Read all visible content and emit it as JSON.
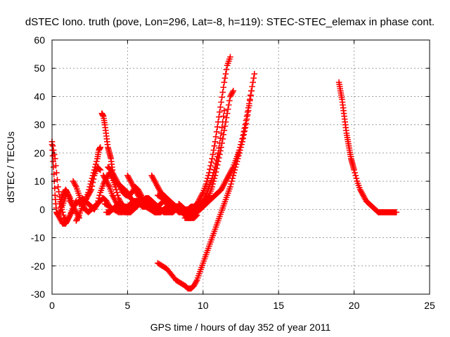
{
  "chart_data": {
    "type": "scatter",
    "title": "dSTEC Iono. truth (pove, Lon=296, Lat=-8, h=119): STEC-STEC_elemax in phase cont.",
    "xlabel": "GPS time / hours of day 352 of year 2011",
    "ylabel": "dSTEC  / TECUs",
    "xlim": [
      0,
      25
    ],
    "ylim": [
      -30,
      60
    ],
    "x_ticks": [
      0,
      5,
      10,
      15,
      20,
      25
    ],
    "y_ticks": [
      -30,
      -20,
      -10,
      0,
      10,
      20,
      30,
      40,
      50,
      60
    ],
    "grid": true,
    "marker": "plus",
    "color": "#ff0000",
    "series": [
      {
        "x": [
          0.0,
          0.2,
          0.4,
          0.6,
          0.8,
          1.0,
          1.2,
          1.4,
          1.6
        ],
        "y": [
          24,
          18,
          8,
          1,
          -3,
          -4,
          -2,
          1,
          3
        ]
      },
      {
        "x": [
          0.0,
          0.1,
          0.2,
          0.3,
          0.4,
          0.6,
          0.8,
          1.0,
          1.2,
          1.4,
          1.6,
          1.8
        ],
        "y": [
          23,
          15,
          5,
          -1,
          -2,
          0,
          3,
          6,
          4,
          1,
          -1,
          -3
        ]
      },
      {
        "x": [
          0.3,
          0.5,
          0.7,
          0.9,
          1.0,
          1.2,
          1.4
        ],
        "y": [
          -1,
          -3,
          -5,
          -5,
          -4,
          -2,
          0
        ]
      },
      {
        "x": [
          0.5,
          0.7,
          0.9,
          1.0,
          1.2,
          1.4,
          1.6,
          1.8,
          2.0,
          2.2,
          2.4,
          2.6,
          2.8,
          3.0,
          3.2
        ],
        "y": [
          2,
          5,
          7,
          6,
          3,
          1,
          2,
          3,
          2,
          3,
          5,
          7,
          12,
          15,
          14
        ]
      },
      {
        "x": [
          1.4,
          1.6,
          1.8,
          2.0,
          2.2,
          2.4,
          2.6,
          2.8,
          3.0,
          3.2,
          3.4,
          3.6,
          3.8,
          4.0
        ],
        "y": [
          10,
          8,
          5,
          2,
          0,
          -1,
          0,
          1,
          2,
          3,
          4,
          3,
          1,
          0
        ]
      },
      {
        "x": [
          1.6,
          1.8,
          2.0,
          2.2,
          2.4,
          2.6,
          2.8,
          3.0,
          3.1,
          3.2
        ],
        "y": [
          -4,
          -2,
          1,
          3,
          6,
          10,
          14,
          18,
          21,
          22
        ]
      },
      {
        "x": [
          1.8,
          2.0,
          2.2,
          2.4,
          2.6,
          2.8,
          3.0,
          3.2,
          3.4,
          3.6,
          3.8,
          4.0,
          4.2
        ],
        "y": [
          2,
          4,
          3,
          2,
          1,
          0,
          2,
          6,
          9,
          11,
          13,
          11,
          8
        ]
      },
      {
        "x": [
          3.3,
          3.4,
          3.5,
          3.6,
          3.7,
          3.8,
          3.9,
          4.0,
          4.2,
          4.4,
          4.6,
          4.8,
          5.0,
          5.2,
          5.4,
          5.6,
          5.8,
          6.0,
          6.2,
          6.4,
          6.6
        ],
        "y": [
          34,
          33,
          30,
          26,
          22,
          20,
          18,
          14,
          8,
          4,
          2,
          1,
          1,
          2,
          3,
          3,
          2,
          1,
          1,
          1,
          1
        ]
      },
      {
        "x": [
          3.4,
          3.6,
          3.8,
          4.0,
          4.2,
          4.4,
          4.6,
          4.8,
          5.0,
          5.2,
          5.4,
          5.6,
          5.8,
          6.0
        ],
        "y": [
          12,
          10,
          8,
          5,
          3,
          1,
          0,
          -1,
          -1,
          0,
          1,
          2,
          2,
          1
        ]
      },
      {
        "x": [
          3.5,
          3.8,
          4.1,
          4.4,
          4.7,
          5.0,
          5.3,
          5.6,
          5.9,
          6.2,
          6.5,
          6.8,
          7.1,
          7.4
        ],
        "y": [
          2,
          1,
          0,
          -1,
          -1,
          0,
          1,
          2,
          2,
          1,
          0,
          -1,
          -1,
          0
        ]
      },
      {
        "x": [
          3.6,
          3.8,
          4.0,
          4.2,
          4.4,
          4.6,
          4.8,
          5.0,
          5.2,
          5.4,
          5.6,
          5.8,
          6.0,
          6.2,
          6.4,
          6.6,
          6.8,
          7.0,
          7.2,
          7.4,
          7.6,
          7.8,
          8.0
        ],
        "y": [
          -1,
          -1,
          0,
          1,
          2,
          1,
          0,
          -1,
          -1,
          0,
          1,
          2,
          3,
          2,
          1,
          0,
          0,
          1,
          2,
          3,
          2,
          1,
          0
        ]
      },
      {
        "x": [
          3.7,
          3.9,
          4.1,
          4.3,
          4.5,
          4.7,
          4.9,
          5.1,
          5.3,
          5.5,
          5.7,
          5.9,
          6.1,
          6.3,
          6.5,
          6.7,
          6.9
        ],
        "y": [
          15,
          14,
          12,
          10,
          8,
          6,
          5,
          5,
          6,
          8,
          7,
          5,
          3,
          2,
          2,
          1,
          1
        ]
      },
      {
        "x": [
          4.2,
          4.4,
          4.6,
          4.8,
          5.0,
          5.2,
          5.4,
          5.6,
          5.8,
          6.0,
          6.2,
          6.4,
          6.6,
          6.8,
          7.0,
          7.2,
          7.4,
          7.6,
          7.8,
          8.0,
          8.2,
          8.4
        ],
        "y": [
          10,
          9,
          8,
          7,
          6,
          4,
          3,
          2,
          2,
          3,
          4,
          4,
          3,
          2,
          1,
          0,
          -1,
          -1,
          -1,
          -1,
          0,
          1
        ]
      },
      {
        "x": [
          5.0,
          5.2,
          5.4,
          5.6,
          5.8,
          6.0,
          6.2,
          6.4,
          6.6,
          6.8,
          7.0,
          7.2,
          7.4,
          7.6,
          7.8,
          8.0,
          8.2,
          8.4,
          8.6,
          8.8,
          9.0,
          9.2,
          9.4,
          9.6,
          9.8
        ],
        "y": [
          12,
          10,
          8,
          6,
          4,
          3,
          2,
          1,
          0,
          -1,
          -1,
          -1,
          0,
          1,
          1,
          1,
          0,
          -1,
          -1,
          -1,
          0,
          1,
          1,
          0,
          0
        ]
      },
      {
        "x": [
          6.6,
          6.8,
          7.0,
          7.2,
          7.4,
          7.6,
          7.8,
          8.0,
          8.2,
          8.4,
          8.6,
          8.8,
          9.0,
          9.2,
          9.4,
          9.6
        ],
        "y": [
          12,
          10,
          8,
          6,
          5,
          4,
          3,
          2,
          1,
          0,
          -1,
          -2,
          -3,
          -3,
          -3,
          -2
        ]
      },
      {
        "x": [
          7.0,
          7.3,
          7.6,
          7.9,
          8.2,
          8.5,
          8.8,
          9.0,
          9.2,
          9.4,
          9.6,
          9.8,
          10.0,
          10.2,
          10.4,
          10.6,
          10.8,
          11.0,
          11.2,
          11.4
        ],
        "y": [
          5,
          4,
          3,
          2,
          1,
          0,
          -1,
          -1,
          -1,
          0,
          1,
          2,
          3,
          5,
          8,
          11,
          15,
          20,
          27,
          35
        ]
      },
      {
        "x": [
          8.4,
          8.6,
          8.8,
          9.0,
          9.2,
          9.4,
          9.6,
          9.8,
          10.0,
          10.2,
          10.4,
          10.6,
          10.8,
          11.0,
          11.2,
          11.4,
          11.6,
          11.8
        ],
        "y": [
          2,
          1,
          0,
          0,
          0,
          1,
          2,
          4,
          6,
          9,
          13,
          18,
          24,
          31,
          38,
          45,
          51,
          54
        ]
      },
      {
        "x": [
          8.8,
          9.0,
          9.2,
          9.4,
          9.6,
          9.8,
          10.0,
          10.2,
          10.4,
          10.6,
          10.8,
          11.0,
          11.2,
          11.4,
          11.6,
          11.8,
          12.0
        ],
        "y": [
          -3,
          -3,
          -3,
          -2,
          -1,
          0,
          1,
          3,
          5,
          8,
          12,
          17,
          22,
          28,
          34,
          40,
          42
        ]
      },
      {
        "x": [
          9.8,
          10.0,
          10.2,
          10.4,
          10.6,
          10.8,
          11.0,
          11.2,
          11.4,
          11.6,
          11.8,
          12.0,
          12.2,
          12.4,
          12.6,
          12.8,
          13.0,
          13.2,
          13.4
        ],
        "y": [
          0,
          1,
          2,
          3,
          4,
          5,
          6,
          7,
          9,
          11,
          13,
          15,
          18,
          21,
          25,
          30,
          36,
          42,
          48
        ]
      },
      {
        "x": [
          7.0,
          7.3,
          7.6,
          7.9,
          8.2,
          8.5,
          8.8,
          9.0,
          9.2,
          9.4,
          9.6,
          9.8,
          10.0,
          10.2,
          10.4,
          10.6,
          10.8,
          11.0,
          11.2,
          11.4,
          11.6,
          11.8,
          12.0,
          12.2,
          12.4,
          12.6,
          12.8,
          13.0,
          13.2
        ],
        "y": [
          -19,
          -20,
          -21,
          -23,
          -25,
          -26,
          -27,
          -28,
          -28,
          -27,
          -25,
          -22,
          -19,
          -16,
          -13,
          -10,
          -7,
          -4,
          -1,
          2,
          5,
          8,
          12,
          16,
          20,
          24,
          29,
          35,
          42
        ]
      },
      {
        "x": [
          19.0,
          19.1,
          19.2,
          19.3,
          19.4,
          19.5,
          19.6,
          19.7,
          19.8,
          19.9,
          20.0,
          20.2,
          20.4,
          20.6,
          20.8,
          21.0,
          21.2,
          21.4,
          21.6,
          21.8,
          22.0,
          22.2,
          22.4,
          22.6,
          22.8
        ],
        "y": [
          45,
          42,
          39,
          35,
          31,
          27,
          24,
          21,
          18,
          16,
          14,
          10,
          7,
          5,
          3,
          2,
          1,
          0,
          -1,
          -1,
          -1,
          -1,
          -1,
          -1,
          -1
        ]
      }
    ]
  }
}
